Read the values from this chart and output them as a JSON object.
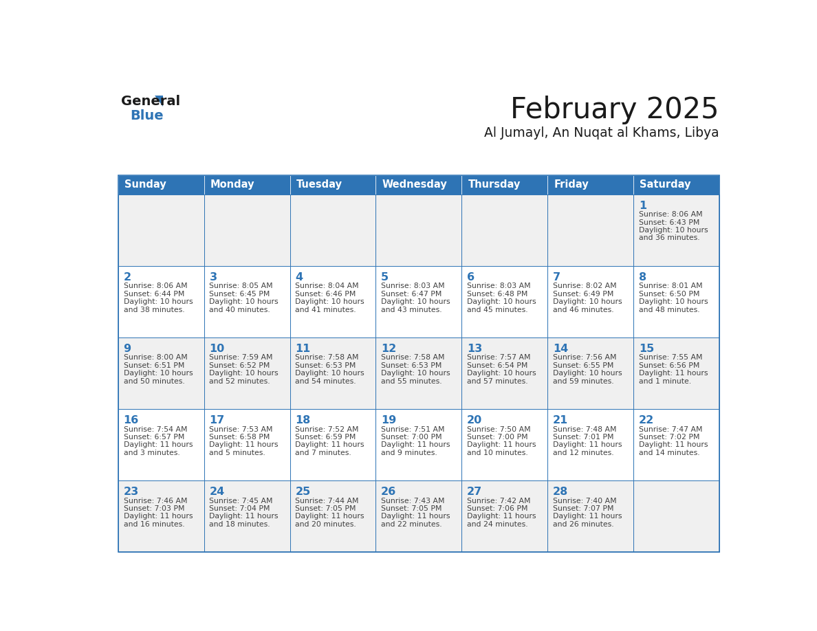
{
  "title": "February 2025",
  "subtitle": "Al Jumayl, An Nuqat al Khams, Libya",
  "header_bg": "#2E74B5",
  "header_text_color": "#FFFFFF",
  "cell_bg_white": "#FFFFFF",
  "cell_bg_gray": "#F0F0F0",
  "border_color": "#2E74B5",
  "day_number_color": "#2E74B5",
  "info_text_color": "#404040",
  "days_of_week": [
    "Sunday",
    "Monday",
    "Tuesday",
    "Wednesday",
    "Thursday",
    "Friday",
    "Saturday"
  ],
  "calendar_data": [
    [
      null,
      null,
      null,
      null,
      null,
      null,
      {
        "day": "1",
        "sunrise": "8:06 AM",
        "sunset": "6:43 PM",
        "daylight_line1": "Daylight: 10 hours",
        "daylight_line2": "and 36 minutes."
      }
    ],
    [
      {
        "day": "2",
        "sunrise": "8:06 AM",
        "sunset": "6:44 PM",
        "daylight_line1": "Daylight: 10 hours",
        "daylight_line2": "and 38 minutes."
      },
      {
        "day": "3",
        "sunrise": "8:05 AM",
        "sunset": "6:45 PM",
        "daylight_line1": "Daylight: 10 hours",
        "daylight_line2": "and 40 minutes."
      },
      {
        "day": "4",
        "sunrise": "8:04 AM",
        "sunset": "6:46 PM",
        "daylight_line1": "Daylight: 10 hours",
        "daylight_line2": "and 41 minutes."
      },
      {
        "day": "5",
        "sunrise": "8:03 AM",
        "sunset": "6:47 PM",
        "daylight_line1": "Daylight: 10 hours",
        "daylight_line2": "and 43 minutes."
      },
      {
        "day": "6",
        "sunrise": "8:03 AM",
        "sunset": "6:48 PM",
        "daylight_line1": "Daylight: 10 hours",
        "daylight_line2": "and 45 minutes."
      },
      {
        "day": "7",
        "sunrise": "8:02 AM",
        "sunset": "6:49 PM",
        "daylight_line1": "Daylight: 10 hours",
        "daylight_line2": "and 46 minutes."
      },
      {
        "day": "8",
        "sunrise": "8:01 AM",
        "sunset": "6:50 PM",
        "daylight_line1": "Daylight: 10 hours",
        "daylight_line2": "and 48 minutes."
      }
    ],
    [
      {
        "day": "9",
        "sunrise": "8:00 AM",
        "sunset": "6:51 PM",
        "daylight_line1": "Daylight: 10 hours",
        "daylight_line2": "and 50 minutes."
      },
      {
        "day": "10",
        "sunrise": "7:59 AM",
        "sunset": "6:52 PM",
        "daylight_line1": "Daylight: 10 hours",
        "daylight_line2": "and 52 minutes."
      },
      {
        "day": "11",
        "sunrise": "7:58 AM",
        "sunset": "6:53 PM",
        "daylight_line1": "Daylight: 10 hours",
        "daylight_line2": "and 54 minutes."
      },
      {
        "day": "12",
        "sunrise": "7:58 AM",
        "sunset": "6:53 PM",
        "daylight_line1": "Daylight: 10 hours",
        "daylight_line2": "and 55 minutes."
      },
      {
        "day": "13",
        "sunrise": "7:57 AM",
        "sunset": "6:54 PM",
        "daylight_line1": "Daylight: 10 hours",
        "daylight_line2": "and 57 minutes."
      },
      {
        "day": "14",
        "sunrise": "7:56 AM",
        "sunset": "6:55 PM",
        "daylight_line1": "Daylight: 10 hours",
        "daylight_line2": "and 59 minutes."
      },
      {
        "day": "15",
        "sunrise": "7:55 AM",
        "sunset": "6:56 PM",
        "daylight_line1": "Daylight: 11 hours",
        "daylight_line2": "and 1 minute."
      }
    ],
    [
      {
        "day": "16",
        "sunrise": "7:54 AM",
        "sunset": "6:57 PM",
        "daylight_line1": "Daylight: 11 hours",
        "daylight_line2": "and 3 minutes."
      },
      {
        "day": "17",
        "sunrise": "7:53 AM",
        "sunset": "6:58 PM",
        "daylight_line1": "Daylight: 11 hours",
        "daylight_line2": "and 5 minutes."
      },
      {
        "day": "18",
        "sunrise": "7:52 AM",
        "sunset": "6:59 PM",
        "daylight_line1": "Daylight: 11 hours",
        "daylight_line2": "and 7 minutes."
      },
      {
        "day": "19",
        "sunrise": "7:51 AM",
        "sunset": "7:00 PM",
        "daylight_line1": "Daylight: 11 hours",
        "daylight_line2": "and 9 minutes."
      },
      {
        "day": "20",
        "sunrise": "7:50 AM",
        "sunset": "7:00 PM",
        "daylight_line1": "Daylight: 11 hours",
        "daylight_line2": "and 10 minutes."
      },
      {
        "day": "21",
        "sunrise": "7:48 AM",
        "sunset": "7:01 PM",
        "daylight_line1": "Daylight: 11 hours",
        "daylight_line2": "and 12 minutes."
      },
      {
        "day": "22",
        "sunrise": "7:47 AM",
        "sunset": "7:02 PM",
        "daylight_line1": "Daylight: 11 hours",
        "daylight_line2": "and 14 minutes."
      }
    ],
    [
      {
        "day": "23",
        "sunrise": "7:46 AM",
        "sunset": "7:03 PM",
        "daylight_line1": "Daylight: 11 hours",
        "daylight_line2": "and 16 minutes."
      },
      {
        "day": "24",
        "sunrise": "7:45 AM",
        "sunset": "7:04 PM",
        "daylight_line1": "Daylight: 11 hours",
        "daylight_line2": "and 18 minutes."
      },
      {
        "day": "25",
        "sunrise": "7:44 AM",
        "sunset": "7:05 PM",
        "daylight_line1": "Daylight: 11 hours",
        "daylight_line2": "and 20 minutes."
      },
      {
        "day": "26",
        "sunrise": "7:43 AM",
        "sunset": "7:05 PM",
        "daylight_line1": "Daylight: 11 hours",
        "daylight_line2": "and 22 minutes."
      },
      {
        "day": "27",
        "sunrise": "7:42 AM",
        "sunset": "7:06 PM",
        "daylight_line1": "Daylight: 11 hours",
        "daylight_line2": "and 24 minutes."
      },
      {
        "day": "28",
        "sunrise": "7:40 AM",
        "sunset": "7:07 PM",
        "daylight_line1": "Daylight: 11 hours",
        "daylight_line2": "and 26 minutes."
      },
      null
    ]
  ]
}
